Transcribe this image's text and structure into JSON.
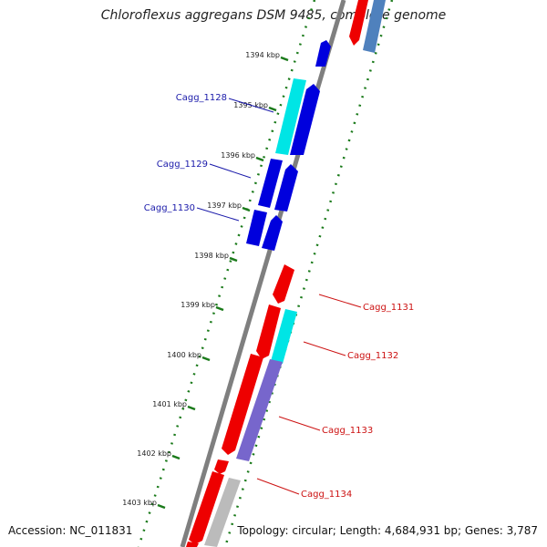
{
  "title": "Chloroflexus aggregans DSM 9485, complete genome",
  "footer": {
    "accession": "Accession: NC_011831",
    "topology": "Topology: circular; Length: 4,684,931 bp; Genes: 3,787"
  },
  "ticks": [
    {
      "label": "1394 kbp"
    },
    {
      "label": "1395 kbp"
    },
    {
      "label": "1396 kbp"
    },
    {
      "label": "1397 kbp"
    },
    {
      "label": "1398 kbp"
    },
    {
      "label": "1399 kbp"
    },
    {
      "label": "1400 kbp"
    },
    {
      "label": "1401 kbp"
    },
    {
      "label": "1402 kbp"
    },
    {
      "label": "1403 kbp"
    }
  ],
  "gene_labels": [
    {
      "label": "Cagg_1128",
      "strand": "minus"
    },
    {
      "label": "Cagg_1129",
      "strand": "minus"
    },
    {
      "label": "Cagg_1130",
      "strand": "minus"
    },
    {
      "label": "Cagg_1131",
      "strand": "plus"
    },
    {
      "label": "Cagg_1132",
      "strand": "plus"
    },
    {
      "label": "Cagg_1133",
      "strand": "plus"
    },
    {
      "label": "Cagg_1134",
      "strand": "plus"
    }
  ],
  "colors": {
    "minus_strand_cds": "#0000dd",
    "plus_strand_cds": "#ee0000",
    "cyan_feature": "#00e5e5",
    "purple_feature": "#7766cc",
    "gray_feature": "#bbbbbb",
    "steelblue_feature": "#4f81bd",
    "backbone": "#7f7f7f",
    "tick_green": "#1a7a1a",
    "minus_label": "#1a1aaa",
    "plus_label": "#cc1111"
  }
}
